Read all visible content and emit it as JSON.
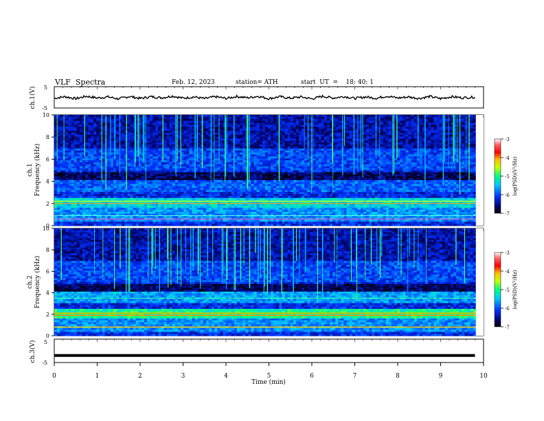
{
  "header": {
    "title": "VLF  Spectra",
    "date": "Feb. 12, 2023",
    "station": "station= ATH",
    "start_ut": "start  UT  =    18: 40: 1"
  },
  "chart_data": [
    {
      "type": "line",
      "panel": "ch1-voltage",
      "ylabel": "ch.1(V)",
      "ylim": [
        -5,
        5
      ],
      "yticks": [
        "5",
        "-5"
      ],
      "xlim": [
        0,
        10
      ],
      "series": [
        {
          "color": "#000000",
          "x": [
            0,
            0.25,
            0.5,
            0.75,
            1,
            1.25,
            1.5,
            1.75,
            2,
            2.25,
            2.5,
            2.75,
            3,
            3.25,
            3.5,
            3.75,
            4,
            4.25,
            4.5,
            4.75,
            5,
            5.25,
            5.5,
            5.75,
            6,
            6.25,
            6.5,
            6.75,
            7,
            7.25,
            7.5,
            7.75,
            8,
            8.25,
            8.5,
            8.75,
            9,
            9.25,
            9.5,
            9.8
          ],
          "values": [
            -0.4,
            0.3,
            -0.6,
            0.5,
            -0.3,
            0.2,
            -0.7,
            0.4,
            -0.5,
            0.3,
            -0.2,
            0.6,
            -0.4,
            0.2,
            -0.6,
            0.3,
            -0.5,
            0.4,
            -0.2,
            0.5,
            -0.6,
            0.3,
            -0.4,
            0.2,
            -0.7,
            0.5,
            -0.3,
            0.4,
            -0.5,
            0.2,
            -0.4,
            0.6,
            -0.3,
            0.2,
            -0.5,
            0.4,
            -0.6,
            0.3,
            -0.2,
            0.1
          ]
        }
      ]
    },
    {
      "type": "heatmap",
      "panel": "ch1-spectrogram",
      "ylabel_top": "ch.1",
      "ylabel": "Frequency (kHz)",
      "ylim": [
        0,
        10
      ],
      "yticks": [
        "0",
        "2",
        "4",
        "6",
        "8",
        "10"
      ],
      "xlim": [
        0,
        10
      ],
      "colorbar": {
        "label": "log(PSD)(V²/Hz)",
        "range": [
          -7,
          -3
        ],
        "ticks": [
          "-3",
          "-4",
          "-5",
          "-6",
          "-7"
        ]
      },
      "data_extent_minutes": 9.82
    },
    {
      "type": "heatmap",
      "panel": "ch2-spectrogram",
      "ylabel_top": "ch.2",
      "ylabel": "Frequency (kHz)",
      "ylim": [
        0,
        10
      ],
      "yticks": [
        "0",
        "2",
        "4",
        "6",
        "8",
        "10"
      ],
      "xlim": [
        0,
        10
      ],
      "colorbar": {
        "label": "log(PSD)(V²/Hz)",
        "range": [
          -7,
          -3
        ],
        "ticks": [
          "-3",
          "-4",
          "-5",
          "-6",
          "-7"
        ]
      },
      "data_extent_minutes": 9.82
    },
    {
      "type": "line",
      "panel": "ch3-voltage",
      "ylabel": "ch.3(V)",
      "ylim": [
        -5,
        5
      ],
      "yticks": [
        "5",
        "-5"
      ],
      "xlim": [
        0,
        10
      ],
      "xlabel": "Time  (min)",
      "xticks": [
        "0",
        "1",
        "2",
        "3",
        "4",
        "5",
        "6",
        "7",
        "8",
        "9",
        "10"
      ],
      "series": [
        {
          "color": "#000000",
          "x": [
            0,
            9.8
          ],
          "values": [
            -2.0,
            -2.0
          ]
        }
      ]
    }
  ]
}
